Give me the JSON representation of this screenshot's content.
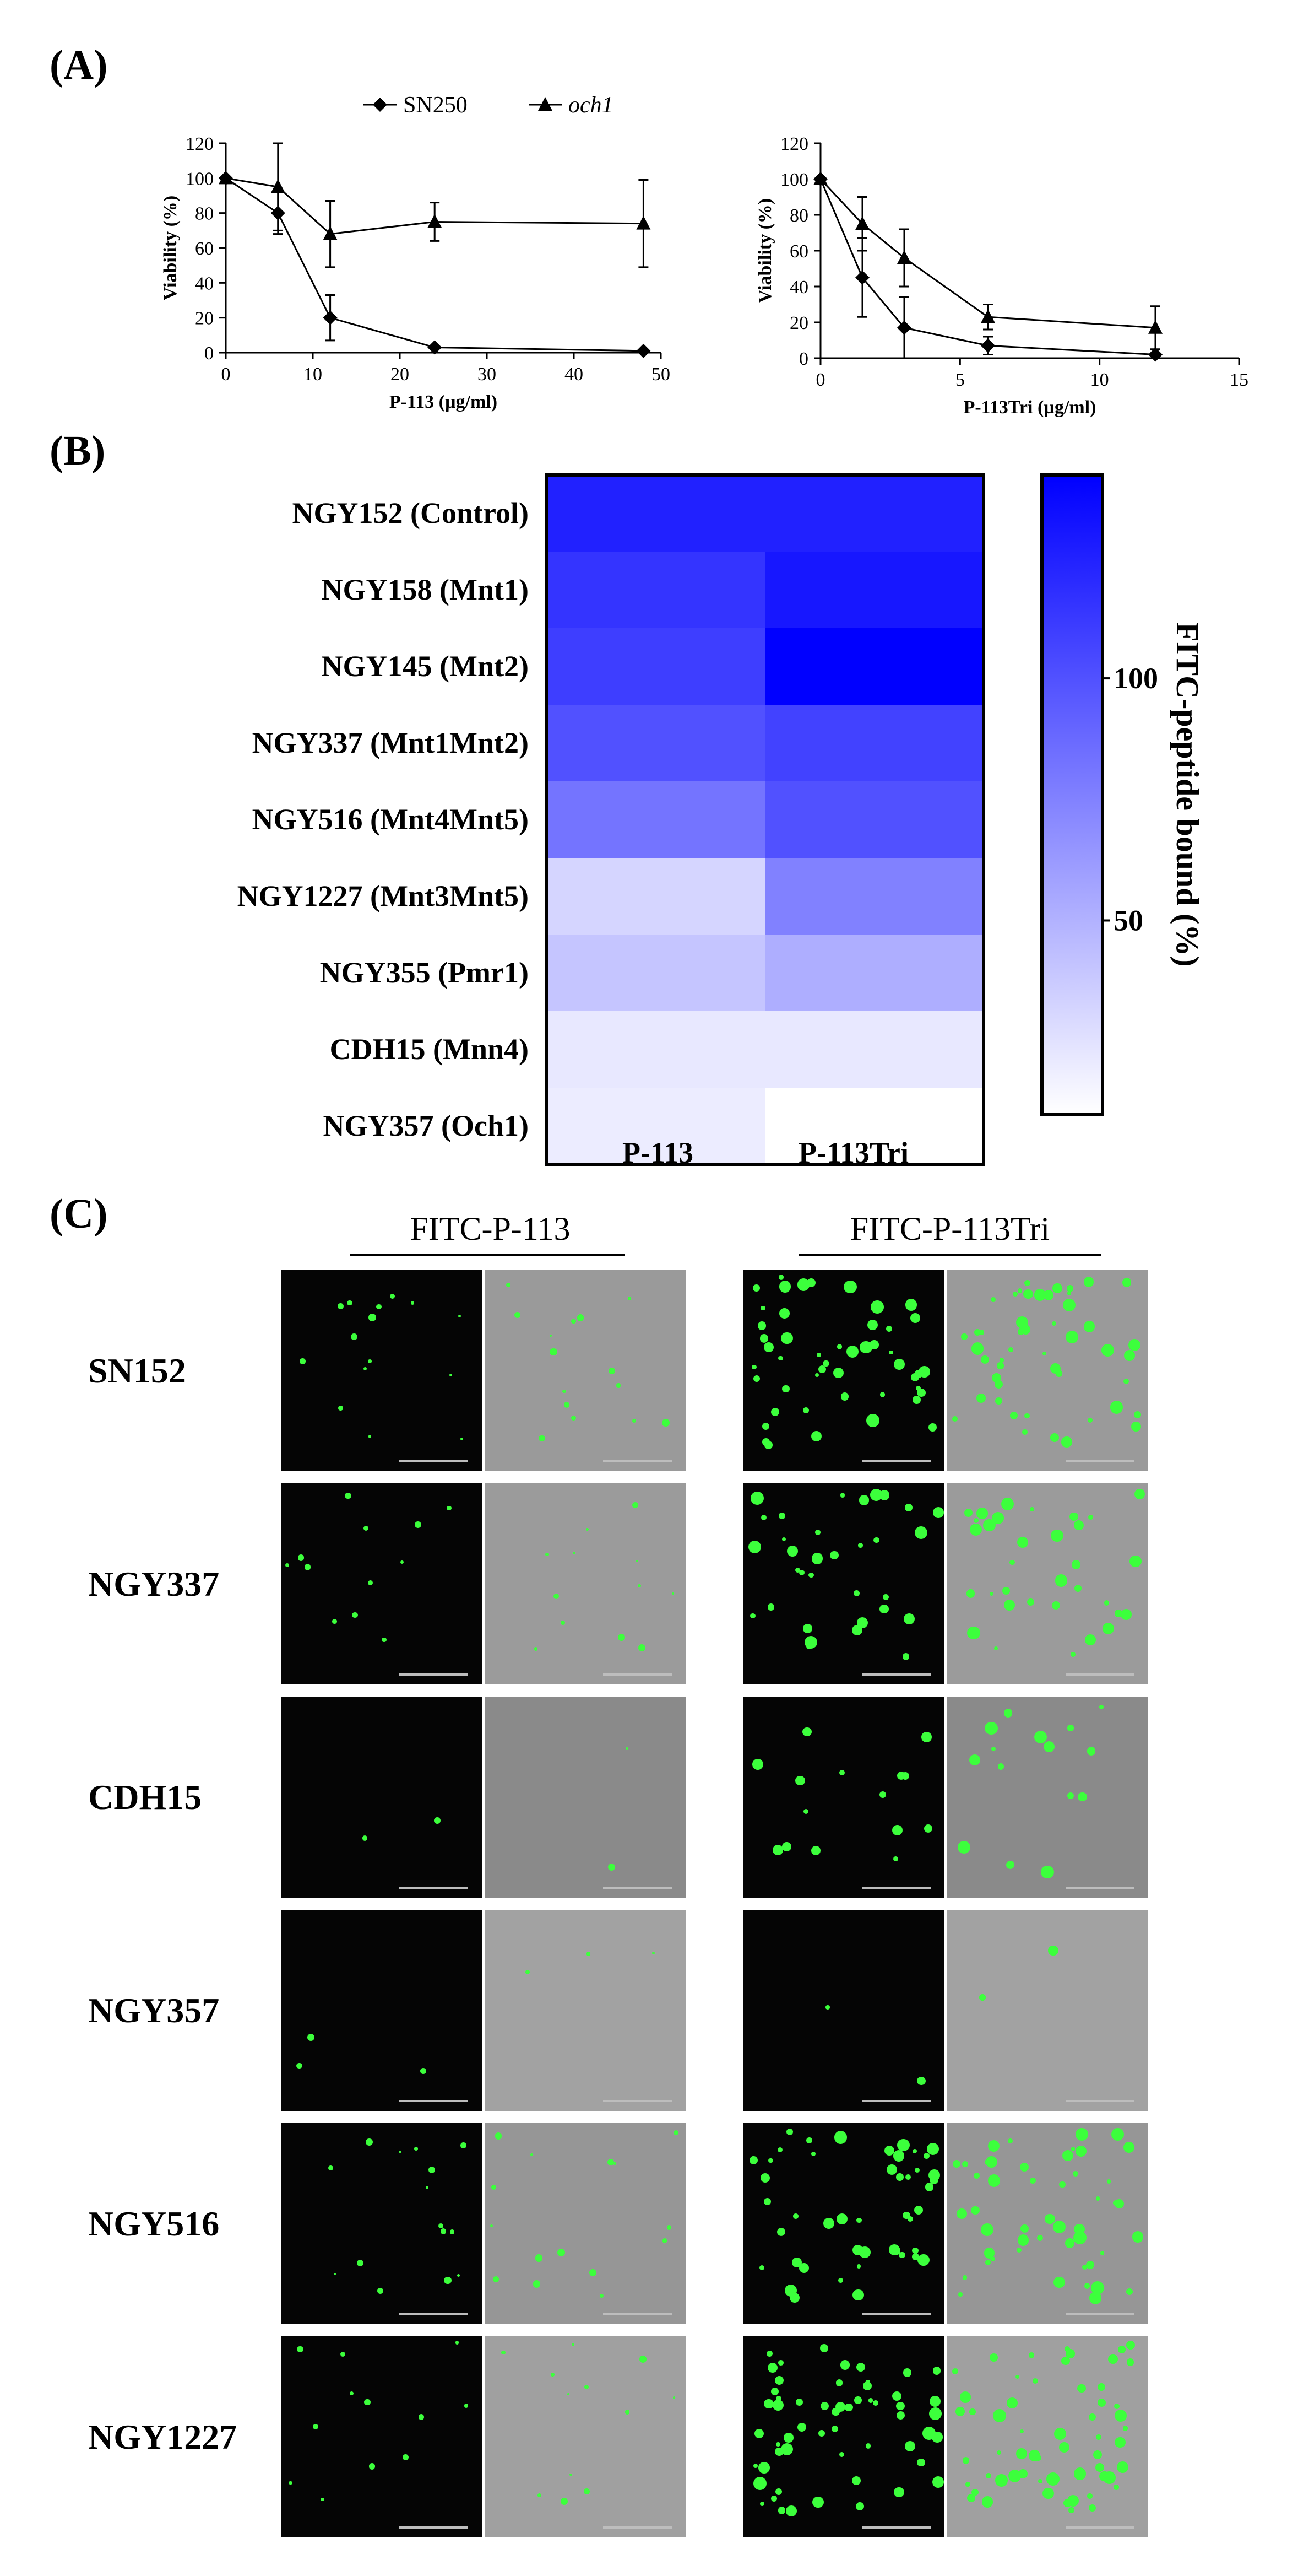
{
  "panels": {
    "a": "(A)",
    "b": "(B)",
    "c": "(C)"
  },
  "chart_data": [
    {
      "type": "line",
      "xlabel": "P-113 (µg/ml)",
      "ylabel": "Viability (%)",
      "xlim": [
        0,
        50
      ],
      "ylim": [
        0,
        120
      ],
      "x_ticks": [
        0,
        10,
        20,
        30,
        40,
        50
      ],
      "y_ticks": [
        0,
        20,
        40,
        60,
        80,
        100,
        120
      ],
      "legend_position": "top",
      "series": [
        {
          "name": "SN250",
          "marker": "diamond",
          "x": [
            0,
            6,
            12,
            24,
            48
          ],
          "y": [
            100,
            80,
            20,
            3,
            1
          ],
          "err": [
            0,
            12,
            13,
            0,
            0
          ]
        },
        {
          "name": "och1",
          "marker": "triangle",
          "x": [
            0,
            6,
            12,
            24,
            48
          ],
          "y": [
            100,
            95,
            68,
            75,
            74
          ],
          "err": [
            0,
            25,
            19,
            11,
            25
          ]
        }
      ]
    },
    {
      "type": "line",
      "xlabel": "P-113Tri (µg/ml)",
      "ylabel": "Viability (%)",
      "xlim": [
        0,
        15
      ],
      "ylim": [
        0,
        120
      ],
      "x_ticks": [
        0,
        5,
        10,
        15
      ],
      "y_ticks": [
        0,
        20,
        40,
        60,
        80,
        100,
        120
      ],
      "series": [
        {
          "marker": "diamond",
          "x": [
            0,
            1.5,
            3,
            6,
            12
          ],
          "y": [
            100,
            45,
            17,
            7,
            2
          ],
          "err": [
            0,
            22,
            17,
            5,
            0
          ]
        },
        {
          "marker": "triangle",
          "x": [
            0,
            1.5,
            3,
            6,
            12
          ],
          "y": [
            100,
            75,
            56,
            23,
            17
          ],
          "err": [
            0,
            15,
            16,
            7,
            12
          ]
        }
      ]
    },
    {
      "type": "heatmap",
      "rows": [
        "NGY152 (Control)",
        "NGY158 (Mnt1)",
        "NGY145 (Mnt2)",
        "NGY337 (Mnt1Mnt2)",
        "NGY516 (Mnt4Mnt5)",
        "NGY1227 (Mnt3Mnt5)",
        "NGY355 (Pmr1)",
        "CDH15 (Mnn4)",
        "NGY357 (Och1)"
      ],
      "columns": [
        "P-113",
        "P-113Tri"
      ],
      "values": [
        [
          125,
          125
        ],
        [
          115,
          130
        ],
        [
          110,
          142
        ],
        [
          100,
          108
        ],
        [
          82,
          100
        ],
        [
          32,
          75
        ],
        [
          40,
          52
        ],
        [
          22,
          22
        ],
        [
          20,
          10
        ]
      ],
      "colorbar_label": "FITC-peptide bound (%)",
      "colorbar_ticks": [
        100,
        50
      ],
      "colorbar_range": [
        10,
        142
      ],
      "color_low": "#ffffff",
      "color_high": "#0000ff"
    }
  ],
  "panel_c": {
    "headers": [
      "FITC-P-113",
      "FITC-P-113Tri"
    ],
    "rows": [
      {
        "label": "SN152",
        "green_a": 0.25,
        "green_b": 0.8,
        "bright": "#9a9a9a"
      },
      {
        "label": "NGY337",
        "green_a": 0.2,
        "green_b": 0.55,
        "bright": "#9b9b9b"
      },
      {
        "label": "CDH15",
        "green_a": 0.03,
        "green_b": 0.25,
        "bright": "#8a8a8a"
      },
      {
        "label": "NGY357",
        "green_a": 0.05,
        "green_b": 0.04,
        "bright": "#a2a2a2"
      },
      {
        "label": "NGY516",
        "green_a": 0.25,
        "green_b": 0.8,
        "bright": "#969696"
      },
      {
        "label": "NGY1227",
        "green_a": 0.2,
        "green_b": 0.95,
        "bright": "#a0a0a0"
      }
    ]
  }
}
